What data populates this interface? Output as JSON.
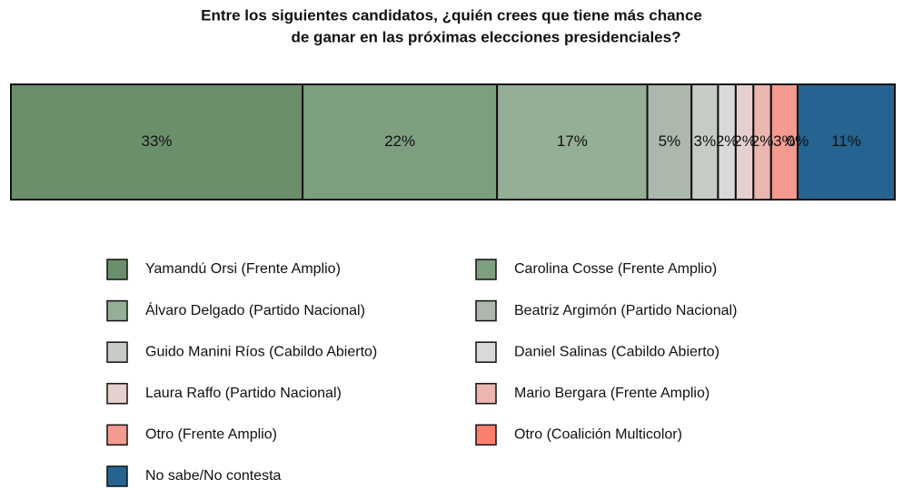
{
  "chart_data": {
    "type": "stacked_bar_100",
    "title": [
      "Entre los siguientes candidatos, ¿quién crees que tiene más chance",
      "de ganar en las próximas elecciones presidenciales?"
    ],
    "series": [
      {
        "name": "Yamandú Orsi (Frente Amplio)",
        "color": "#6b8f6a",
        "values": [
          33
        ],
        "value_labels": [
          "33%"
        ]
      },
      {
        "name": "Carolina Cosse (Frente Amplio)",
        "color": "#7e9e80",
        "values": [
          22
        ],
        "value_labels": [
          "22%"
        ]
      },
      {
        "name": "Álvaro Delgado (Partido Nacional)",
        "color": "#95ae96",
        "values": [
          17
        ],
        "value_labels": [
          "17%"
        ]
      },
      {
        "name": "Beatriz Argimón (Partido Nacional)",
        "color": "#adb8ad",
        "values": [
          5
        ],
        "value_labels": [
          "5%"
        ]
      },
      {
        "name": "Guido Manini Ríos (Cabildo Abierto)",
        "color": "#c6cbc5",
        "values": [
          3
        ],
        "value_labels": [
          "3%"
        ]
      },
      {
        "name": "Daniel Salinas (Cabildo Abierto)",
        "color": "#d9d9d9",
        "values": [
          2
        ],
        "value_labels": [
          "2%"
        ]
      },
      {
        "name": "Laura Raffo (Partido Nacional)",
        "color": "#e5d0cd",
        "values": [
          2
        ],
        "value_labels": [
          "2%"
        ]
      },
      {
        "name": "Mario Bergara (Frente Amplio)",
        "color": "#ebb6b0",
        "values": [
          2
        ],
        "value_labels": [
          "2%"
        ]
      },
      {
        "name": "Otro (Frente Amplio)",
        "color": "#f59a8f",
        "values": [
          3
        ],
        "value_labels": [
          "3%"
        ]
      },
      {
        "name": "Otro (Coalición Multicolor)",
        "color": "#fa7f6f",
        "values": [
          0
        ],
        "value_labels": [
          "0%"
        ]
      },
      {
        "name": "No sabe/No contesta",
        "color": "#256490",
        "values": [
          11
        ],
        "value_labels": [
          "11%"
        ]
      }
    ],
    "xlim": [
      0,
      100
    ]
  }
}
